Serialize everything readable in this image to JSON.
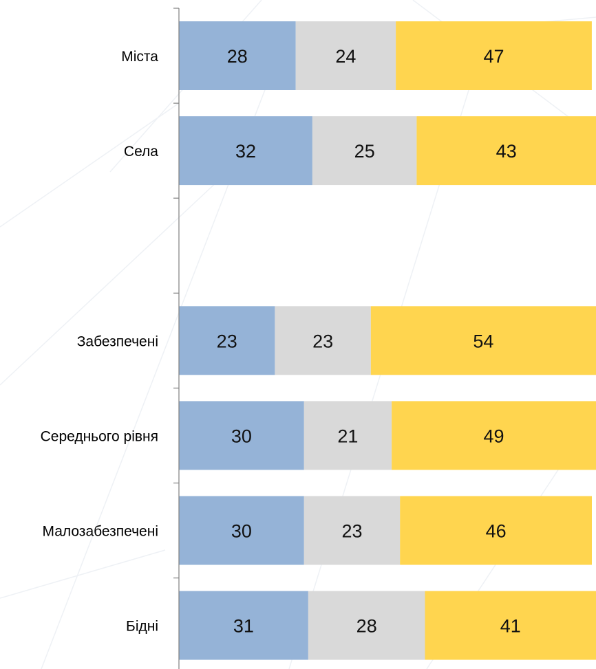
{
  "chart_data": {
    "type": "bar",
    "orientation": "horizontal",
    "stacked": true,
    "categories": [
      "Міста",
      "Села",
      "",
      "Забезпечені",
      "Середнього рівня",
      "Малозабезпечені",
      "Бідні"
    ],
    "series": [
      {
        "color": "#95B3D7",
        "values": [
          28,
          32,
          null,
          23,
          30,
          30,
          31
        ]
      },
      {
        "color": "#D9D9D9",
        "values": [
          24,
          25,
          null,
          23,
          21,
          23,
          28
        ]
      },
      {
        "color": "#FFD54F",
        "values": [
          47,
          43,
          null,
          54,
          49,
          46,
          41
        ]
      }
    ],
    "xlim": [
      0,
      100
    ],
    "grid": false,
    "legend": "none",
    "title": "",
    "xlabel": "",
    "ylabel": ""
  }
}
